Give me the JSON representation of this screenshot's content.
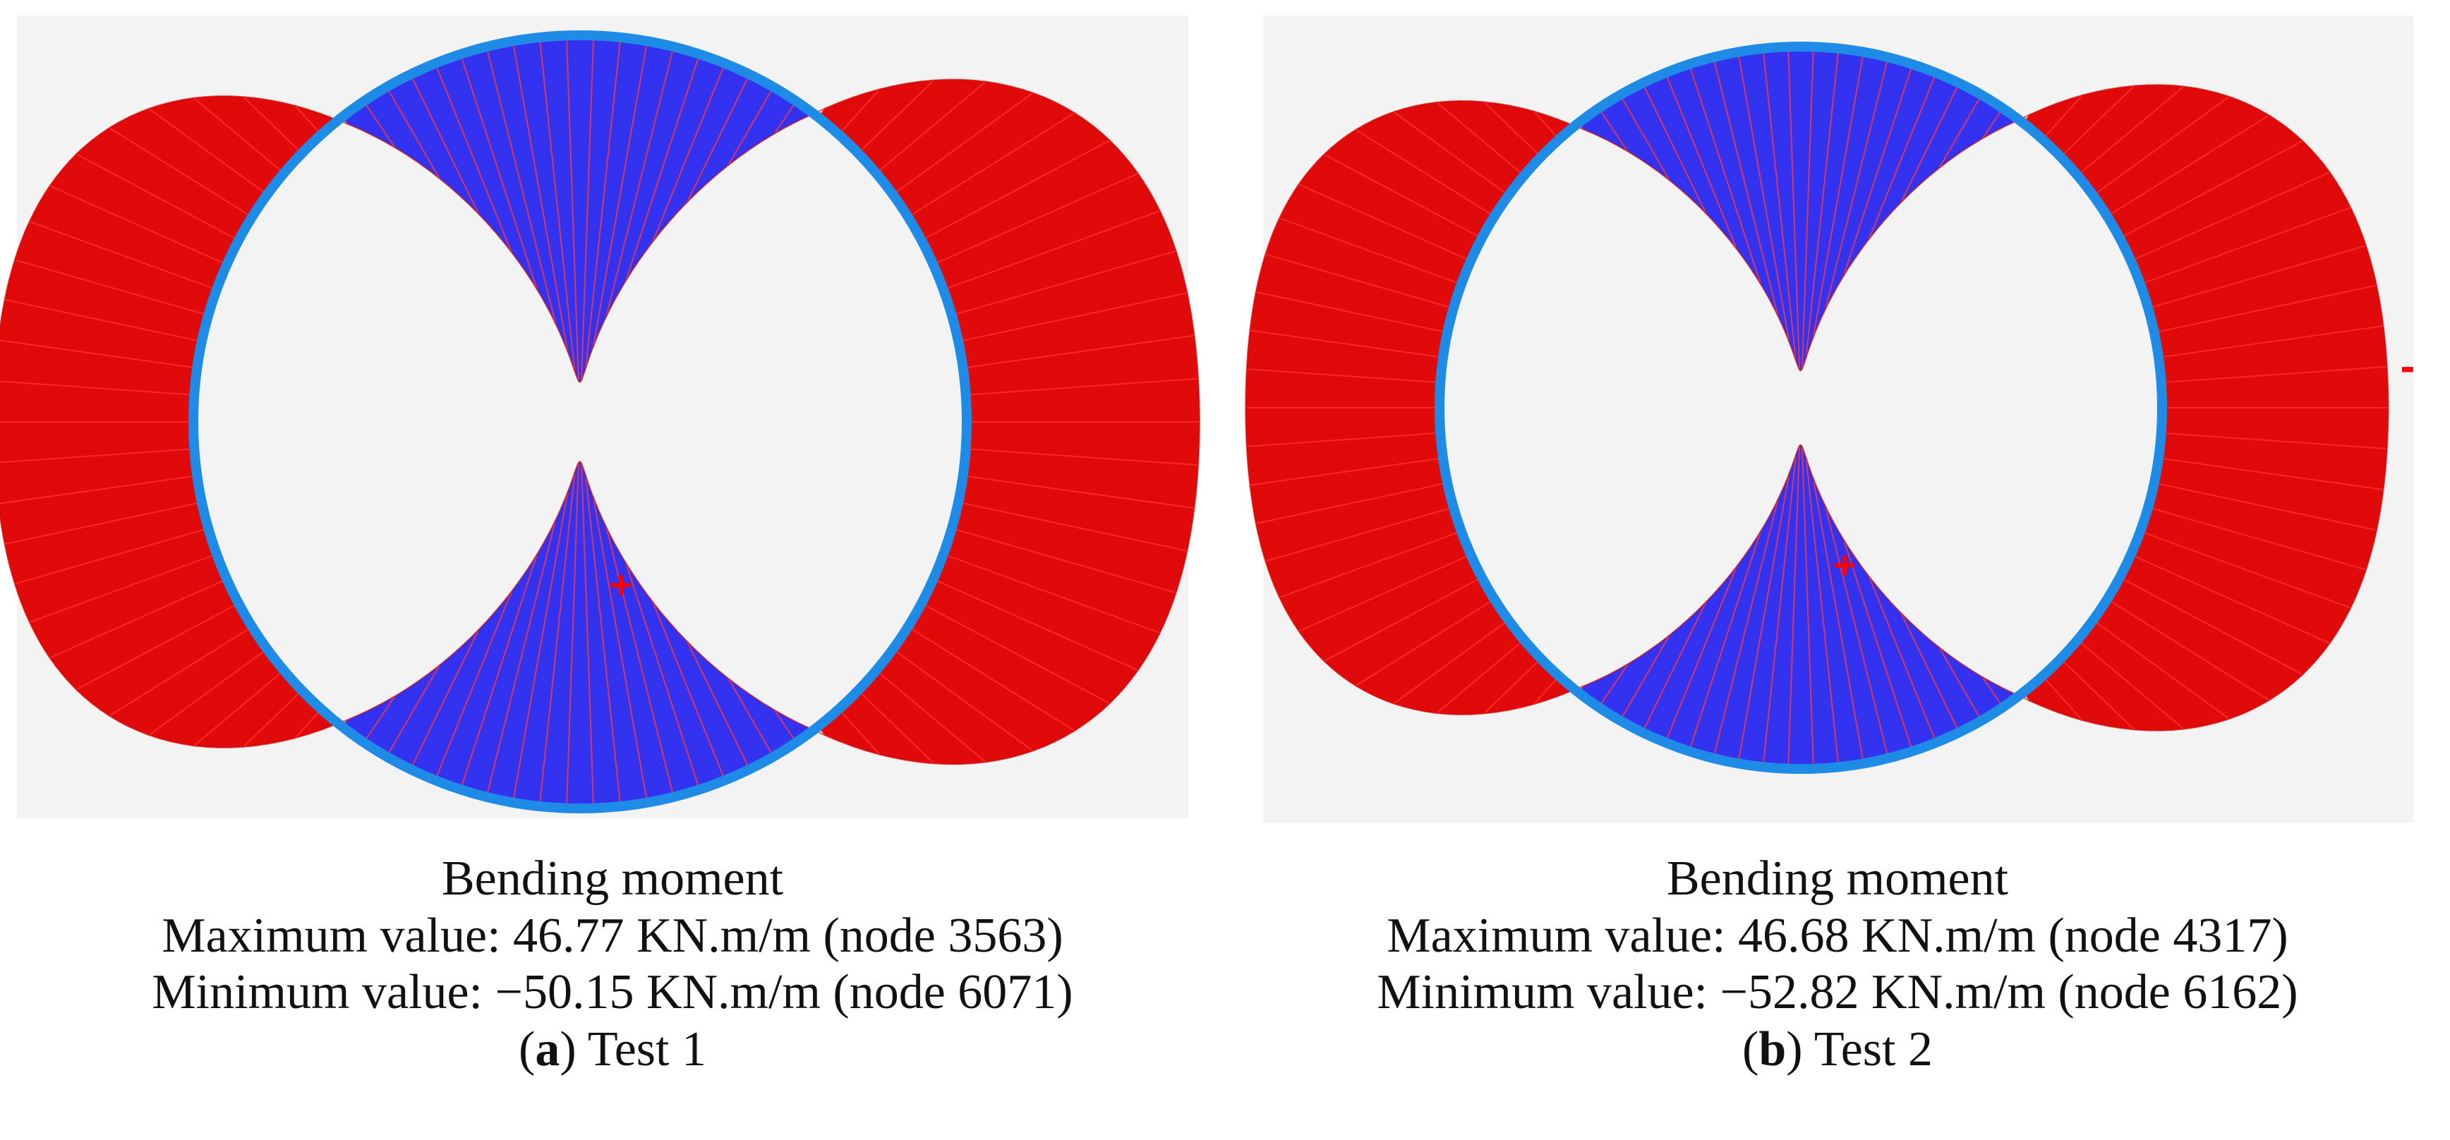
{
  "colors": {
    "positive": "#e10a0a",
    "negative": "#3232f0",
    "ring": "#1e8ce6",
    "ray_red": "#ff3030",
    "ray_blue": "#ff3a3a",
    "background": "#f3f3f3"
  },
  "panels": [
    {
      "id": "a",
      "sign_markers": [
        "+"
      ],
      "caption": {
        "title": "Bending moment",
        "max_line": "Maximum value: 46.77 KN.m/m (node 3563)",
        "min_line": "Minimum value: −50.15 KN.m/m (node 6071)",
        "letter": "a",
        "test": "Test 1"
      }
    },
    {
      "id": "b",
      "sign_markers": [
        "+",
        "-"
      ],
      "caption": {
        "title": "Bending moment",
        "max_line": "Maximum value: 46.68 KN.m/m (node 4317)",
        "min_line": "Minimum value: −52.82 KN.m/m (node 6162)",
        "letter": "b",
        "test": "Test 2"
      }
    }
  ]
}
